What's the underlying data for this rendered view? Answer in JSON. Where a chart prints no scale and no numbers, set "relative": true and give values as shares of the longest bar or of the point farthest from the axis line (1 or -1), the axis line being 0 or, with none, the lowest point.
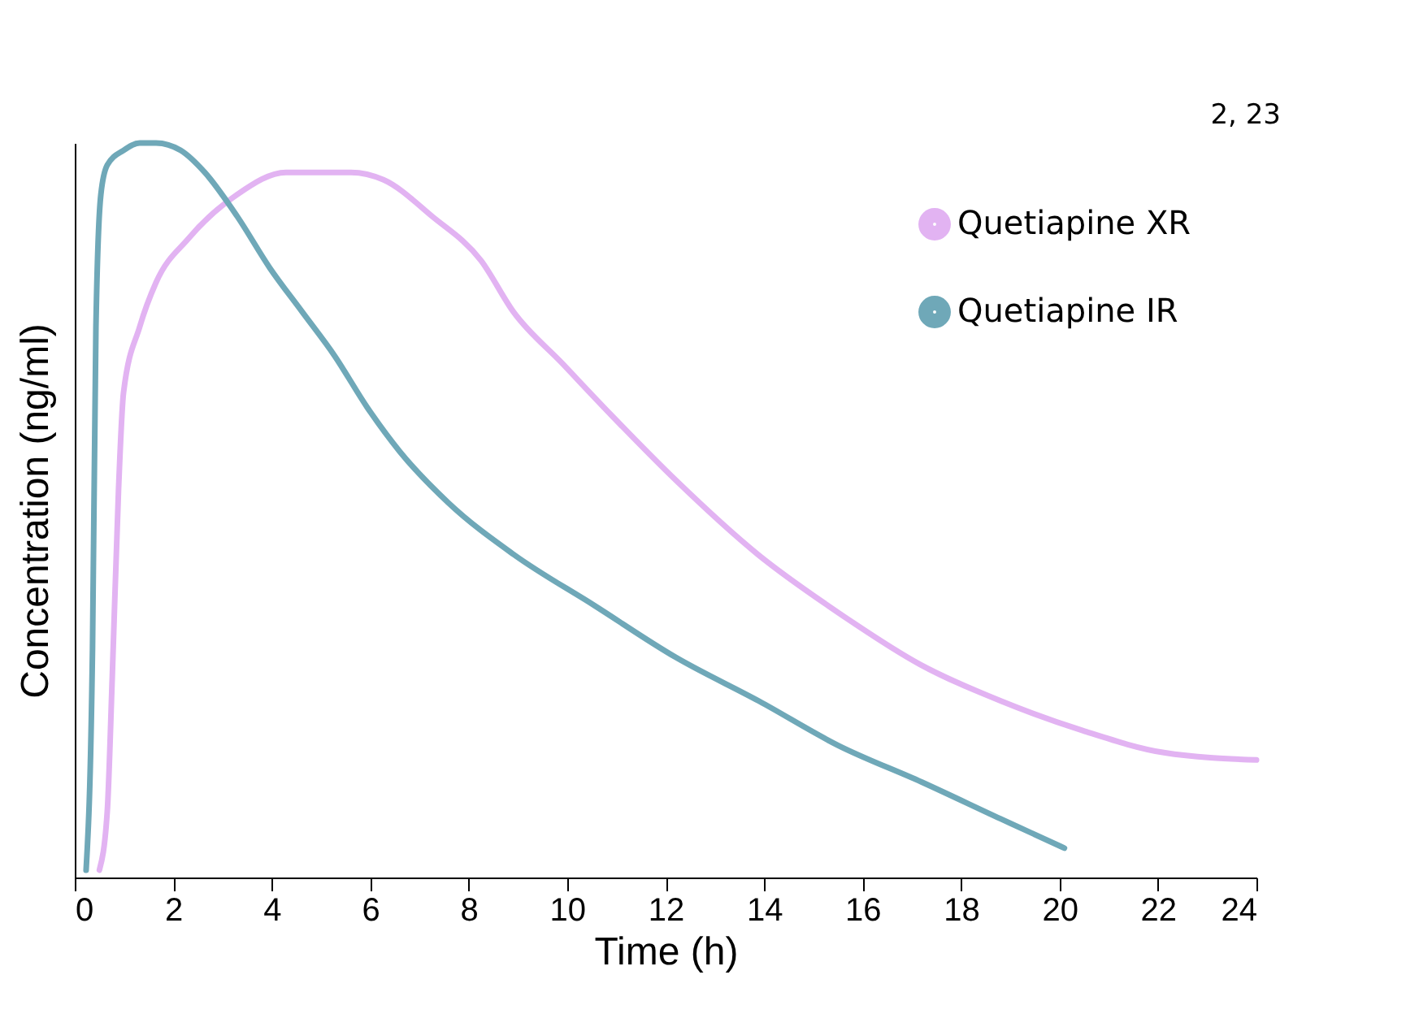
{
  "chart_data": {
    "type": "line",
    "relative": true,
    "xlabel": "Time (h)",
    "ylabel": "Concentration (ng/ml)",
    "xlim": [
      0,
      24
    ],
    "xticks": [
      0,
      2,
      4,
      6,
      8,
      10,
      12,
      14,
      16,
      18,
      20,
      22,
      24
    ],
    "annotations": [
      "2, 23"
    ],
    "legend": "top right",
    "grid": false,
    "marker": "none",
    "line_style": "solid",
    "series": [
      {
        "name": "Quetiapine XR",
        "color": "#e2b3f2",
        "x": [
          0.5,
          0.66,
          0.76,
          0.89,
          0.99,
          1.32,
          1.65,
          2.31,
          3.3,
          4.29,
          4.62,
          5.28,
          5.61,
          6.27,
          7.26,
          8.25,
          8.91,
          9.9,
          10.89,
          12.22,
          13.87,
          15.52,
          17.17,
          18.82,
          20.47,
          22.12,
          24.0
        ],
        "values": [
          0.01,
          0.09,
          0.27,
          0.53,
          0.66,
          0.75,
          0.81,
          0.87,
          0.93,
          0.96,
          0.96,
          0.96,
          0.96,
          0.95,
          0.9,
          0.84,
          0.77,
          0.7,
          0.63,
          0.54,
          0.44,
          0.36,
          0.29,
          0.24,
          0.2,
          0.17,
          0.16
        ]
      },
      {
        "name": "Quetiapine IR",
        "color": "#6fa8b8",
        "x": [
          0.23,
          0.36,
          0.43,
          0.53,
          0.66,
          0.99,
          1.32,
          1.65,
          2.15,
          2.64,
          3.3,
          3.96,
          4.62,
          5.28,
          5.94,
          6.6,
          7.59,
          8.91,
          10.56,
          12.2,
          13.9,
          15.5,
          17.2,
          18.8,
          20.1
        ],
        "values": [
          0.01,
          0.31,
          0.75,
          0.93,
          0.97,
          0.99,
          1.0,
          1.0,
          0.99,
          0.96,
          0.9,
          0.83,
          0.77,
          0.71,
          0.64,
          0.58,
          0.51,
          0.44,
          0.37,
          0.3,
          0.24,
          0.18,
          0.13,
          0.08,
          0.04
        ]
      }
    ]
  }
}
